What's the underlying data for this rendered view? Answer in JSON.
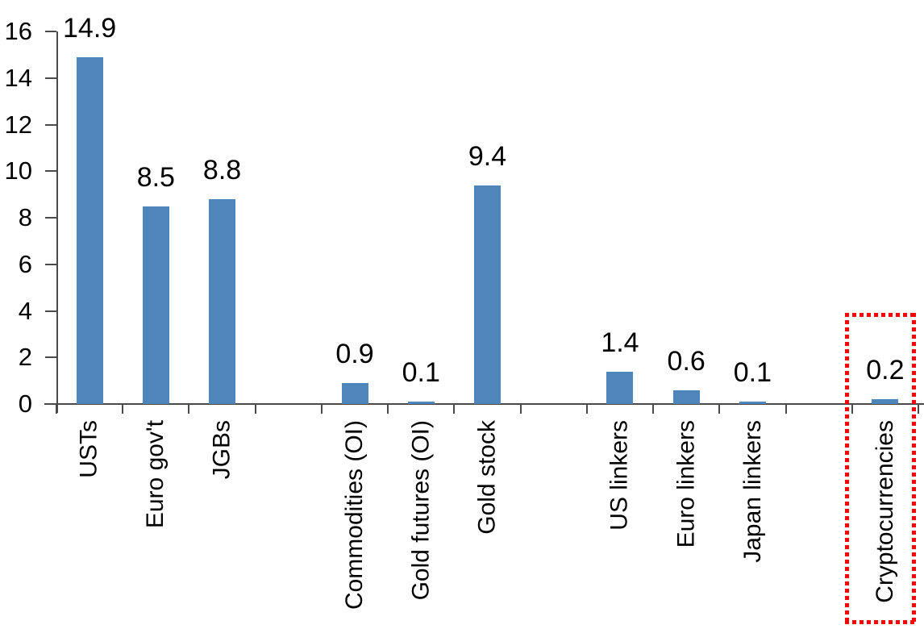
{
  "chart_data": {
    "type": "bar",
    "title": "",
    "xlabel": "",
    "ylabel": "",
    "categories": [
      "USTs",
      "Euro gov't",
      "JGBs",
      "Commodities (OI)",
      "Gold futures (OI)",
      "Gold stock",
      "US linkers",
      "Euro linkers",
      "Japan linkers",
      "Cryptocurrencies"
    ],
    "values": [
      14.9,
      8.5,
      8.8,
      0.9,
      0.1,
      9.4,
      1.4,
      0.6,
      0.1,
      0.2
    ],
    "value_labels": [
      "14.9",
      "8.5",
      "8.8",
      "0.9",
      "0.1",
      "9.4",
      "1.4",
      "0.6",
      "0.1",
      "0.2"
    ],
    "y_ticks": [
      "0",
      "2",
      "4",
      "6",
      "8",
      "10",
      "12",
      "14",
      "16"
    ],
    "ylim": [
      0,
      16
    ],
    "grid": "off",
    "legend": "none",
    "bar_color": "#4E86BC",
    "axis_color": "#4A4A4A",
    "text_color": "#000000",
    "layout_hints": {
      "total_slots": 13,
      "slot_indices": [
        0,
        1,
        2,
        4,
        5,
        6,
        8,
        9,
        10,
        12
      ],
      "category_label_rotation_deg": 90
    },
    "highlight": {
      "category": "Cryptocurrencies",
      "style": "dotted-box",
      "color": "#FF0000"
    }
  }
}
